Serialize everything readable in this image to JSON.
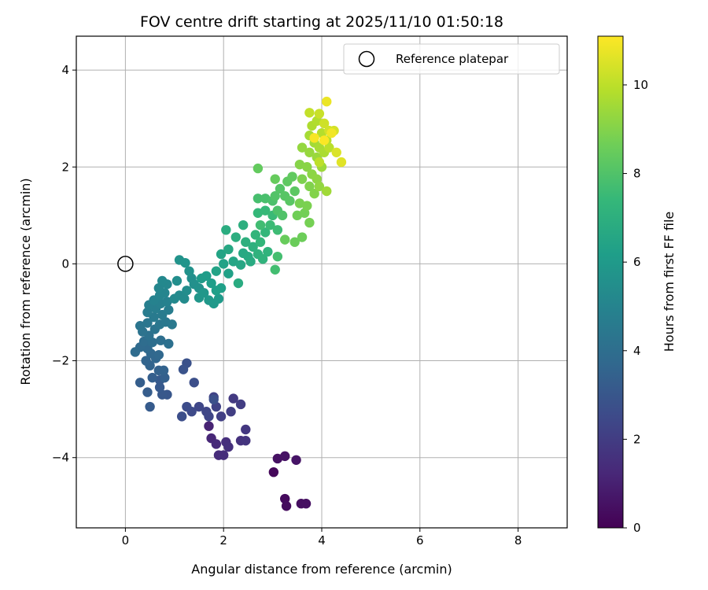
{
  "chart_data": {
    "type": "scatter",
    "title": "FOV centre drift starting at 2025/11/10 01:50:18",
    "xlabel": "Angular distance from reference (arcmin)",
    "ylabel": "Rotation from reference (arcmin)",
    "xlim": [
      -1.0,
      9.0
    ],
    "ylim": [
      -5.45,
      4.7
    ],
    "xticks": [
      0,
      2,
      4,
      6,
      8
    ],
    "yticks": [
      -4,
      -2,
      0,
      2,
      4
    ],
    "grid": true,
    "legend": {
      "placement": "top-right",
      "entries": [
        "Reference platepar"
      ]
    },
    "reference_point": {
      "x": 0,
      "y": 0,
      "label": "Reference platepar"
    },
    "colorbar": {
      "label": "Hours from first FF file",
      "colormap": "viridis",
      "min": 0,
      "max": 11.1,
      "ticks": [
        0,
        2,
        4,
        6,
        8,
        10
      ]
    },
    "colormap_stops": [
      "#440154",
      "#482878",
      "#3e4989",
      "#31688e",
      "#26828e",
      "#1f9e89",
      "#35b779",
      "#6ece58",
      "#b5de2b",
      "#fde725"
    ],
    "points": [
      {
        "x": 3.02,
        "y": -4.3,
        "t": 0.2
      },
      {
        "x": 3.25,
        "y": -4.85,
        "t": 0.3
      },
      {
        "x": 3.28,
        "y": -5.0,
        "t": 0.35
      },
      {
        "x": 3.58,
        "y": -4.95,
        "t": 0.4
      },
      {
        "x": 3.68,
        "y": -4.95,
        "t": 0.45
      },
      {
        "x": 3.1,
        "y": -4.02,
        "t": 0.5
      },
      {
        "x": 3.25,
        "y": -3.97,
        "t": 0.55
      },
      {
        "x": 3.48,
        "y": -4.05,
        "t": 0.6
      },
      {
        "x": 1.75,
        "y": -3.6,
        "t": 1.2
      },
      {
        "x": 1.85,
        "y": -3.72,
        "t": 1.3
      },
      {
        "x": 1.9,
        "y": -3.95,
        "t": 1.4
      },
      {
        "x": 2.0,
        "y": -3.95,
        "t": 1.45
      },
      {
        "x": 2.05,
        "y": -3.68,
        "t": 1.5
      },
      {
        "x": 2.1,
        "y": -3.78,
        "t": 1.55
      },
      {
        "x": 2.35,
        "y": -3.65,
        "t": 1.6
      },
      {
        "x": 2.45,
        "y": -3.65,
        "t": 1.7
      },
      {
        "x": 2.45,
        "y": -3.42,
        "t": 1.8
      },
      {
        "x": 2.2,
        "y": -2.78,
        "t": 1.9
      },
      {
        "x": 2.35,
        "y": -2.9,
        "t": 2.0
      },
      {
        "x": 2.15,
        "y": -3.05,
        "t": 2.05
      },
      {
        "x": 1.95,
        "y": -3.15,
        "t": 2.1
      },
      {
        "x": 1.85,
        "y": -2.95,
        "t": 2.2
      },
      {
        "x": 1.8,
        "y": -2.75,
        "t": 2.25
      },
      {
        "x": 1.7,
        "y": -3.15,
        "t": 2.3
      },
      {
        "x": 1.65,
        "y": -3.05,
        "t": 2.35
      },
      {
        "x": 1.5,
        "y": -2.95,
        "t": 2.4
      },
      {
        "x": 1.35,
        "y": -3.05,
        "t": 2.5
      },
      {
        "x": 1.25,
        "y": -2.95,
        "t": 2.6
      },
      {
        "x": 1.15,
        "y": -3.15,
        "t": 2.65
      },
      {
        "x": 1.4,
        "y": -2.45,
        "t": 2.7
      },
      {
        "x": 1.8,
        "y": -2.8,
        "t": 2.75
      },
      {
        "x": 1.7,
        "y": -3.35,
        "t": 1.1
      },
      {
        "x": 1.25,
        "y": -2.05,
        "t": 2.8
      },
      {
        "x": 1.18,
        "y": -2.18,
        "t": 2.85
      },
      {
        "x": 0.85,
        "y": -2.7,
        "t": 3.0
      },
      {
        "x": 0.75,
        "y": -2.7,
        "t": 3.05
      },
      {
        "x": 0.7,
        "y": -2.55,
        "t": 3.1
      },
      {
        "x": 0.7,
        "y": -2.4,
        "t": 3.15
      },
      {
        "x": 0.5,
        "y": -2.95,
        "t": 3.2
      },
      {
        "x": 0.45,
        "y": -2.65,
        "t": 3.25
      },
      {
        "x": 0.3,
        "y": -2.45,
        "t": 3.3
      },
      {
        "x": 0.55,
        "y": -2.35,
        "t": 3.35
      },
      {
        "x": 0.8,
        "y": -2.35,
        "t": 3.4
      },
      {
        "x": 0.68,
        "y": -2.2,
        "t": 3.45
      },
      {
        "x": 0.78,
        "y": -2.2,
        "t": 3.5
      },
      {
        "x": 0.5,
        "y": -2.1,
        "t": 3.55
      },
      {
        "x": 0.42,
        "y": -2.0,
        "t": 3.6
      },
      {
        "x": 0.62,
        "y": -1.95,
        "t": 3.65
      },
      {
        "x": 0.52,
        "y": -1.85,
        "t": 3.7
      },
      {
        "x": 0.68,
        "y": -1.88,
        "t": 3.75
      },
      {
        "x": 0.45,
        "y": -1.75,
        "t": 3.8
      },
      {
        "x": 0.3,
        "y": -1.72,
        "t": 3.85
      },
      {
        "x": 0.2,
        "y": -1.82,
        "t": 3.9
      },
      {
        "x": 0.38,
        "y": -1.6,
        "t": 3.95
      },
      {
        "x": 0.55,
        "y": -1.62,
        "t": 4.0
      },
      {
        "x": 0.72,
        "y": -1.58,
        "t": 4.05
      },
      {
        "x": 0.88,
        "y": -1.65,
        "t": 4.1
      },
      {
        "x": 0.48,
        "y": -1.48,
        "t": 4.15
      },
      {
        "x": 0.35,
        "y": -1.4,
        "t": 4.2
      },
      {
        "x": 0.6,
        "y": -1.35,
        "t": 4.25
      },
      {
        "x": 0.3,
        "y": -1.28,
        "t": 4.3
      },
      {
        "x": 0.45,
        "y": -1.22,
        "t": 4.35
      },
      {
        "x": 0.7,
        "y": -1.25,
        "t": 4.4
      },
      {
        "x": 0.82,
        "y": -1.2,
        "t": 4.45
      },
      {
        "x": 0.95,
        "y": -1.25,
        "t": 4.5
      },
      {
        "x": 0.58,
        "y": -1.1,
        "t": 4.55
      },
      {
        "x": 0.75,
        "y": -1.05,
        "t": 4.6
      },
      {
        "x": 0.45,
        "y": -1.0,
        "t": 4.65
      },
      {
        "x": 0.88,
        "y": -0.95,
        "t": 4.7
      },
      {
        "x": 0.62,
        "y": -0.92,
        "t": 4.75
      },
      {
        "x": 0.48,
        "y": -0.85,
        "t": 4.8
      },
      {
        "x": 0.72,
        "y": -0.82,
        "t": 4.85
      },
      {
        "x": 0.85,
        "y": -0.78,
        "t": 4.9
      },
      {
        "x": 0.58,
        "y": -0.75,
        "t": 4.95
      },
      {
        "x": 0.7,
        "y": -0.65,
        "t": 5.0
      },
      {
        "x": 0.8,
        "y": -0.6,
        "t": 5.05
      },
      {
        "x": 0.68,
        "y": -0.5,
        "t": 5.1
      },
      {
        "x": 0.85,
        "y": -0.42,
        "t": 5.15
      },
      {
        "x": 0.75,
        "y": -0.35,
        "t": 5.2
      },
      {
        "x": 1.0,
        "y": -0.72,
        "t": 5.25
      },
      {
        "x": 1.1,
        "y": -0.65,
        "t": 5.3
      },
      {
        "x": 1.2,
        "y": -0.72,
        "t": 5.35
      },
      {
        "x": 1.25,
        "y": -0.55,
        "t": 5.4
      },
      {
        "x": 1.05,
        "y": -0.35,
        "t": 5.45
      },
      {
        "x": 1.35,
        "y": -0.3,
        "t": 5.5
      },
      {
        "x": 1.4,
        "y": -0.42,
        "t": 5.55
      },
      {
        "x": 1.5,
        "y": -0.5,
        "t": 5.6
      },
      {
        "x": 1.3,
        "y": -0.15,
        "t": 5.65
      },
      {
        "x": 1.1,
        "y": 0.08,
        "t": 5.7
      },
      {
        "x": 1.22,
        "y": 0.02,
        "t": 5.75
      },
      {
        "x": 1.5,
        "y": -0.7,
        "t": 5.8
      },
      {
        "x": 1.6,
        "y": -0.6,
        "t": 5.85
      },
      {
        "x": 1.7,
        "y": -0.75,
        "t": 5.9
      },
      {
        "x": 1.8,
        "y": -0.82,
        "t": 5.95
      },
      {
        "x": 1.9,
        "y": -0.72,
        "t": 6.0
      },
      {
        "x": 1.55,
        "y": -0.3,
        "t": 6.05
      },
      {
        "x": 1.65,
        "y": -0.25,
        "t": 6.1
      },
      {
        "x": 1.75,
        "y": -0.4,
        "t": 6.15
      },
      {
        "x": 1.85,
        "y": -0.55,
        "t": 6.2
      },
      {
        "x": 1.95,
        "y": -0.5,
        "t": 6.25
      },
      {
        "x": 2.1,
        "y": -0.2,
        "t": 6.3
      },
      {
        "x": 2.0,
        "y": 0.0,
        "t": 6.35
      },
      {
        "x": 1.85,
        "y": -0.15,
        "t": 6.4
      },
      {
        "x": 1.95,
        "y": 0.2,
        "t": 6.45
      },
      {
        "x": 2.2,
        "y": 0.05,
        "t": 6.5
      },
      {
        "x": 2.35,
        "y": -0.02,
        "t": 6.55
      },
      {
        "x": 2.1,
        "y": 0.3,
        "t": 6.6
      },
      {
        "x": 2.4,
        "y": 0.22,
        "t": 6.65
      },
      {
        "x": 2.5,
        "y": 0.15,
        "t": 6.7
      },
      {
        "x": 2.55,
        "y": 0.05,
        "t": 6.75
      },
      {
        "x": 2.3,
        "y": -0.4,
        "t": 6.8
      },
      {
        "x": 2.05,
        "y": 0.7,
        "t": 6.85
      },
      {
        "x": 2.25,
        "y": 0.55,
        "t": 6.9
      },
      {
        "x": 2.4,
        "y": 0.8,
        "t": 6.95
      },
      {
        "x": 2.45,
        "y": 0.45,
        "t": 7.0
      },
      {
        "x": 2.6,
        "y": 0.35,
        "t": 7.05
      },
      {
        "x": 2.7,
        "y": 0.2,
        "t": 7.1
      },
      {
        "x": 2.8,
        "y": 0.1,
        "t": 7.15
      },
      {
        "x": 2.9,
        "y": 0.25,
        "t": 7.2
      },
      {
        "x": 2.65,
        "y": 0.6,
        "t": 7.25
      },
      {
        "x": 2.75,
        "y": 0.45,
        "t": 7.3
      },
      {
        "x": 2.85,
        "y": 0.65,
        "t": 7.35
      },
      {
        "x": 2.7,
        "y": 1.05,
        "t": 7.4
      },
      {
        "x": 2.85,
        "y": 1.1,
        "t": 7.45
      },
      {
        "x": 3.0,
        "y": 1.0,
        "t": 7.5
      },
      {
        "x": 2.95,
        "y": 0.8,
        "t": 7.55
      },
      {
        "x": 3.1,
        "y": 0.7,
        "t": 7.6
      },
      {
        "x": 2.75,
        "y": 0.8,
        "t": 7.65
      },
      {
        "x": 3.05,
        "y": -0.12,
        "t": 7.7
      },
      {
        "x": 3.1,
        "y": 0.15,
        "t": 7.75
      },
      {
        "x": 2.7,
        "y": 1.35,
        "t": 7.8
      },
      {
        "x": 2.85,
        "y": 1.35,
        "t": 7.85
      },
      {
        "x": 3.0,
        "y": 1.3,
        "t": 7.9
      },
      {
        "x": 3.1,
        "y": 1.1,
        "t": 7.95
      },
      {
        "x": 3.2,
        "y": 1.0,
        "t": 8.0
      },
      {
        "x": 3.05,
        "y": 1.4,
        "t": 8.05
      },
      {
        "x": 3.15,
        "y": 1.55,
        "t": 8.1
      },
      {
        "x": 3.25,
        "y": 1.4,
        "t": 8.15
      },
      {
        "x": 3.35,
        "y": 1.3,
        "t": 8.2
      },
      {
        "x": 3.45,
        "y": 1.5,
        "t": 8.25
      },
      {
        "x": 3.3,
        "y": 1.7,
        "t": 8.3
      },
      {
        "x": 3.4,
        "y": 1.8,
        "t": 8.35
      },
      {
        "x": 2.7,
        "y": 1.97,
        "t": 8.4
      },
      {
        "x": 3.05,
        "y": 1.75,
        "t": 8.45
      },
      {
        "x": 3.25,
        "y": 0.5,
        "t": 8.5
      },
      {
        "x": 3.45,
        "y": 0.45,
        "t": 8.55
      },
      {
        "x": 3.6,
        "y": 0.55,
        "t": 8.6
      },
      {
        "x": 3.5,
        "y": 1.0,
        "t": 8.65
      },
      {
        "x": 3.65,
        "y": 1.05,
        "t": 8.7
      },
      {
        "x": 3.75,
        "y": 0.85,
        "t": 8.75
      },
      {
        "x": 3.55,
        "y": 1.25,
        "t": 8.8
      },
      {
        "x": 3.7,
        "y": 1.2,
        "t": 8.85
      },
      {
        "x": 3.6,
        "y": 1.75,
        "t": 8.9
      },
      {
        "x": 3.75,
        "y": 1.6,
        "t": 8.95
      },
      {
        "x": 3.85,
        "y": 1.45,
        "t": 9.0
      },
      {
        "x": 3.55,
        "y": 2.05,
        "t": 9.05
      },
      {
        "x": 3.7,
        "y": 2.0,
        "t": 9.1
      },
      {
        "x": 3.8,
        "y": 1.85,
        "t": 9.15
      },
      {
        "x": 3.9,
        "y": 1.75,
        "t": 9.2
      },
      {
        "x": 3.95,
        "y": 1.6,
        "t": 9.25
      },
      {
        "x": 3.6,
        "y": 2.4,
        "t": 9.3
      },
      {
        "x": 3.75,
        "y": 2.3,
        "t": 9.35
      },
      {
        "x": 3.9,
        "y": 2.2,
        "t": 9.4
      },
      {
        "x": 4.0,
        "y": 2.0,
        "t": 9.45
      },
      {
        "x": 4.1,
        "y": 1.5,
        "t": 9.5
      },
      {
        "x": 3.85,
        "y": 2.5,
        "t": 9.55
      },
      {
        "x": 3.75,
        "y": 2.65,
        "t": 9.6
      },
      {
        "x": 3.95,
        "y": 2.4,
        "t": 9.65
      },
      {
        "x": 4.05,
        "y": 2.3,
        "t": 9.7
      },
      {
        "x": 3.8,
        "y": 2.85,
        "t": 9.75
      },
      {
        "x": 3.9,
        "y": 2.95,
        "t": 9.8
      },
      {
        "x": 4.0,
        "y": 2.7,
        "t": 9.85
      },
      {
        "x": 4.1,
        "y": 2.55,
        "t": 9.9
      },
      {
        "x": 4.15,
        "y": 2.4,
        "t": 9.95
      },
      {
        "x": 3.95,
        "y": 2.1,
        "t": 10.0
      },
      {
        "x": 3.75,
        "y": 3.12,
        "t": 10.1
      },
      {
        "x": 3.95,
        "y": 3.1,
        "t": 10.2
      },
      {
        "x": 4.05,
        "y": 2.9,
        "t": 10.3
      },
      {
        "x": 4.15,
        "y": 2.75,
        "t": 10.35
      },
      {
        "x": 4.25,
        "y": 2.75,
        "t": 10.4
      },
      {
        "x": 4.3,
        "y": 2.3,
        "t": 10.5
      },
      {
        "x": 4.4,
        "y": 2.1,
        "t": 10.6
      },
      {
        "x": 4.1,
        "y": 3.35,
        "t": 10.8
      },
      {
        "x": 4.2,
        "y": 2.7,
        "t": 10.9
      },
      {
        "x": 3.85,
        "y": 2.6,
        "t": 11.0
      },
      {
        "x": 4.05,
        "y": 2.55,
        "t": 11.05
      }
    ]
  }
}
